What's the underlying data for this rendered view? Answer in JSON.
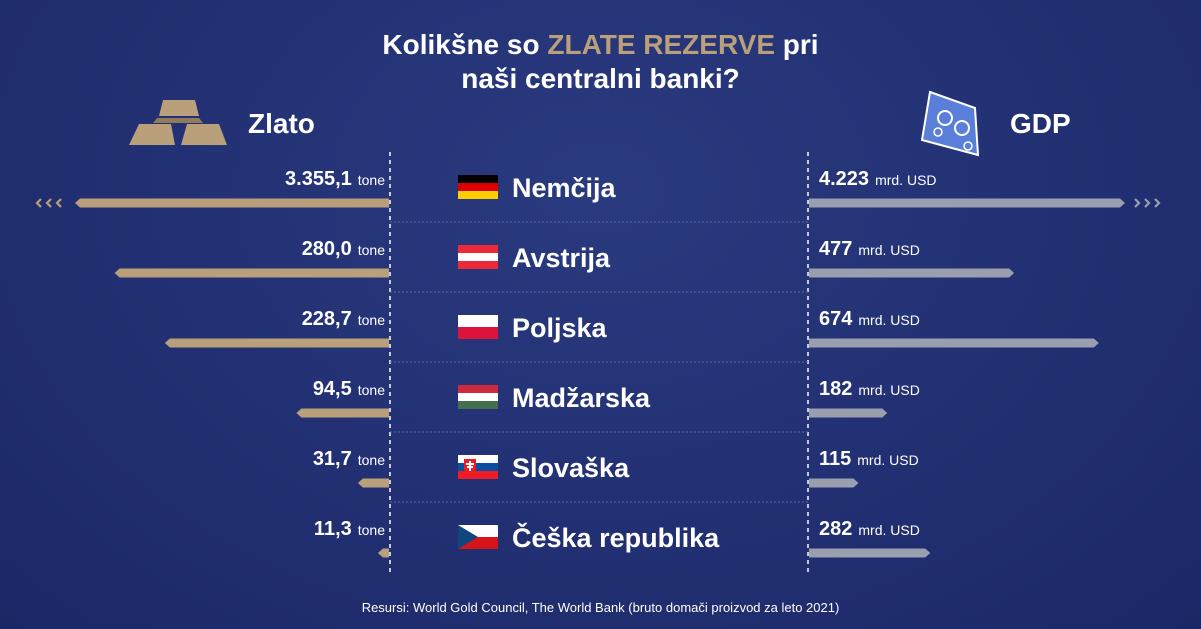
{
  "title": {
    "part1": "Kolikšne so ",
    "highlight": "ZLATE REZERVE",
    "part2": " pri",
    "line2": "naši centralni banki?"
  },
  "headers": {
    "left": "Zlato",
    "right": "GDP"
  },
  "icons": {
    "left": "gold-bars-icon",
    "right": "banknote-icon"
  },
  "colors": {
    "gold": "#b9a07a",
    "gdp": "#9a9fb0",
    "background": "#223073",
    "highlight": "#b9a07a"
  },
  "footer": "Resursi: World Gold Council, The World Bank (bruto domači proizvod za leto 2021)",
  "chart_data": {
    "type": "bar",
    "categories": [
      "Nemčija",
      "Avstrija",
      "Poljska",
      "Madžarska",
      "Slovaška",
      "Češka republika"
    ],
    "series": [
      {
        "name": "Zlato",
        "unit": "tone",
        "values": [
          3355.1,
          280.0,
          228.7,
          94.5,
          31.7,
          11.3
        ],
        "labels": [
          "3.355,1",
          "280,0",
          "228,7",
          "94,5",
          "31,7",
          "11,3"
        ],
        "truncated": [
          true,
          false,
          false,
          false,
          false,
          false
        ]
      },
      {
        "name": "GDP",
        "unit": "mrd. USD",
        "values": [
          4223,
          477,
          674,
          182,
          115,
          282
        ],
        "labels": [
          "4.223",
          "477",
          "674",
          "182",
          "115",
          "282"
        ],
        "truncated": [
          true,
          false,
          false,
          false,
          false,
          false
        ]
      }
    ],
    "flags": [
      "germany-flag",
      "austria-flag",
      "poland-flag",
      "hungary-flag",
      "slovakia-flag",
      "czech-flag"
    ]
  }
}
